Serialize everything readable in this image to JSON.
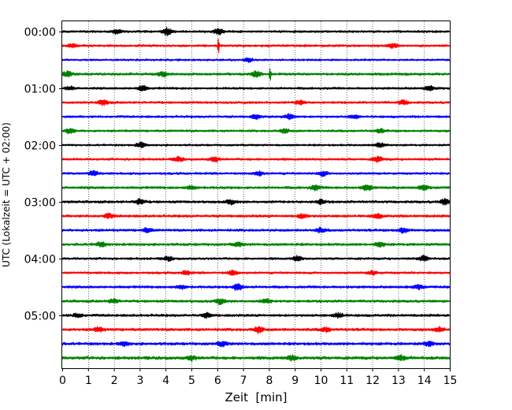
{
  "chart_data": {
    "type": "line",
    "subtype": "helicorder seismogram",
    "xlabel": "Zeit  [min]",
    "ylabel": "UTC (Lokalzeit = UTC + 02:00)",
    "xlim": [
      0,
      15
    ],
    "x_ticks": [
      0,
      1,
      2,
      3,
      4,
      5,
      6,
      7,
      8,
      9,
      10,
      11,
      12,
      13,
      14,
      15
    ],
    "x_tick_labels": [
      "0",
      "1",
      "2",
      "3",
      "4",
      "5",
      "6",
      "7",
      "8",
      "9",
      "10",
      "11",
      "12",
      "13",
      "14",
      "15"
    ],
    "y_tick_labels": [
      "00:00",
      "01:00",
      "02:00",
      "03:00",
      "04:00",
      "05:00"
    ],
    "y_tick_rows": [
      0,
      4,
      8,
      12,
      16,
      20
    ],
    "minutes_per_trace": 15,
    "trace_count": 24,
    "grid": "vertical dotted lines at each minute",
    "trace_colors": [
      "#000000",
      "#ff0000",
      "#0000ff",
      "#008000"
    ],
    "traces": [
      {
        "row": 0,
        "start": "00:00",
        "color": "#000000",
        "amplitude": 0.9,
        "events": [
          {
            "minute": 4.05,
            "amplitude": 3.5
          },
          {
            "minute": 6.05,
            "amplitude": 2.5
          },
          {
            "minute": 2.1,
            "amplitude": 1.8
          }
        ]
      },
      {
        "row": 1,
        "start": "00:15",
        "color": "#ff0000",
        "amplitude": 0.9,
        "events": [
          {
            "minute": 6.05,
            "amplitude": 7.5
          },
          {
            "minute": 12.8,
            "amplitude": 2.0
          },
          {
            "minute": 0.4,
            "amplitude": 1.8
          }
        ]
      },
      {
        "row": 2,
        "start": "00:30",
        "color": "#0000ff",
        "amplitude": 0.8,
        "events": [
          {
            "minute": 7.2,
            "amplitude": 1.8
          }
        ]
      },
      {
        "row": 3,
        "start": "00:45",
        "color": "#008000",
        "amplitude": 1.0,
        "events": [
          {
            "minute": 8.05,
            "amplitude": 9.0
          },
          {
            "minute": 0.2,
            "amplitude": 2.5
          },
          {
            "minute": 3.9,
            "amplitude": 2.0
          },
          {
            "minute": 7.5,
            "amplitude": 2.5
          }
        ]
      },
      {
        "row": 4,
        "start": "01:00",
        "color": "#000000",
        "amplitude": 0.9,
        "events": [
          {
            "minute": 3.1,
            "amplitude": 2.5
          },
          {
            "minute": 14.2,
            "amplitude": 2.0
          },
          {
            "minute": 0.3,
            "amplitude": 1.5
          }
        ]
      },
      {
        "row": 5,
        "start": "01:15",
        "color": "#ff0000",
        "amplitude": 0.9,
        "events": [
          {
            "minute": 1.6,
            "amplitude": 2.5
          },
          {
            "minute": 9.2,
            "amplitude": 2.0
          },
          {
            "minute": 13.2,
            "amplitude": 2.0
          }
        ]
      },
      {
        "row": 6,
        "start": "01:30",
        "color": "#0000ff",
        "amplitude": 0.9,
        "events": [
          {
            "minute": 8.8,
            "amplitude": 2.5
          },
          {
            "minute": 7.5,
            "amplitude": 2.0
          },
          {
            "minute": 11.3,
            "amplitude": 1.6
          }
        ]
      },
      {
        "row": 7,
        "start": "01:45",
        "color": "#008000",
        "amplitude": 0.9,
        "events": [
          {
            "minute": 8.6,
            "amplitude": 2.0
          },
          {
            "minute": 0.3,
            "amplitude": 2.0
          },
          {
            "minute": 12.3,
            "amplitude": 1.6
          }
        ]
      },
      {
        "row": 8,
        "start": "02:00",
        "color": "#000000",
        "amplitude": 0.8,
        "events": [
          {
            "minute": 3.05,
            "amplitude": 2.5
          },
          {
            "minute": 12.3,
            "amplitude": 2.5
          }
        ]
      },
      {
        "row": 9,
        "start": "02:15",
        "color": "#ff0000",
        "amplitude": 0.9,
        "events": [
          {
            "minute": 12.2,
            "amplitude": 2.8
          },
          {
            "minute": 5.9,
            "amplitude": 2.5
          },
          {
            "minute": 4.5,
            "amplitude": 2.0
          }
        ]
      },
      {
        "row": 10,
        "start": "02:30",
        "color": "#0000ff",
        "amplitude": 0.9,
        "events": [
          {
            "minute": 1.2,
            "amplitude": 2.5
          },
          {
            "minute": 10.1,
            "amplitude": 2.2
          },
          {
            "minute": 7.6,
            "amplitude": 2.0
          }
        ]
      },
      {
        "row": 11,
        "start": "02:45",
        "color": "#008000",
        "amplitude": 1.0,
        "events": [
          {
            "minute": 11.8,
            "amplitude": 2.8
          },
          {
            "minute": 9.8,
            "amplitude": 2.3
          },
          {
            "minute": 14.0,
            "amplitude": 2.0
          },
          {
            "minute": 5.0,
            "amplitude": 2.0
          }
        ]
      },
      {
        "row": 12,
        "start": "03:00",
        "color": "#000000",
        "amplitude": 1.0,
        "events": [
          {
            "minute": 3.0,
            "amplitude": 2.5
          },
          {
            "minute": 14.8,
            "amplitude": 2.5
          },
          {
            "minute": 6.5,
            "amplitude": 2.0
          },
          {
            "minute": 10.0,
            "amplitude": 2.0
          }
        ]
      },
      {
        "row": 13,
        "start": "03:15",
        "color": "#ff0000",
        "amplitude": 1.0,
        "events": [
          {
            "minute": 1.8,
            "amplitude": 2.0
          },
          {
            "minute": 9.3,
            "amplitude": 2.2
          },
          {
            "minute": 12.2,
            "amplitude": 2.0
          }
        ]
      },
      {
        "row": 14,
        "start": "03:30",
        "color": "#0000ff",
        "amplitude": 1.0,
        "events": [
          {
            "minute": 13.2,
            "amplitude": 2.5
          },
          {
            "minute": 10.0,
            "amplitude": 2.0
          },
          {
            "minute": 3.3,
            "amplitude": 2.0
          }
        ]
      },
      {
        "row": 15,
        "start": "03:45",
        "color": "#008000",
        "amplitude": 1.0,
        "events": [
          {
            "minute": 1.5,
            "amplitude": 2.0
          },
          {
            "minute": 12.3,
            "amplitude": 2.0
          },
          {
            "minute": 6.8,
            "amplitude": 1.8
          }
        ]
      },
      {
        "row": 16,
        "start": "04:00",
        "color": "#000000",
        "amplitude": 0.9,
        "events": [
          {
            "minute": 9.1,
            "amplitude": 2.2
          },
          {
            "minute": 14.0,
            "amplitude": 2.5
          },
          {
            "minute": 4.1,
            "amplitude": 1.8
          }
        ]
      },
      {
        "row": 17,
        "start": "04:15",
        "color": "#ff0000",
        "amplitude": 0.9,
        "events": [
          {
            "minute": 6.6,
            "amplitude": 2.3
          },
          {
            "minute": 4.8,
            "amplitude": 1.8
          },
          {
            "minute": 12.0,
            "amplitude": 1.8
          }
        ]
      },
      {
        "row": 18,
        "start": "04:30",
        "color": "#0000ff",
        "amplitude": 1.0,
        "events": [
          {
            "minute": 6.8,
            "amplitude": 3.5
          },
          {
            "minute": 4.6,
            "amplitude": 2.0
          },
          {
            "minute": 13.8,
            "amplitude": 1.8
          }
        ]
      },
      {
        "row": 19,
        "start": "04:45",
        "color": "#008000",
        "amplitude": 1.0,
        "events": [
          {
            "minute": 6.1,
            "amplitude": 2.5
          },
          {
            "minute": 2.0,
            "amplitude": 2.0
          },
          {
            "minute": 7.9,
            "amplitude": 2.0
          }
        ]
      },
      {
        "row": 20,
        "start": "05:00",
        "color": "#000000",
        "amplitude": 1.0,
        "events": [
          {
            "minute": 5.6,
            "amplitude": 2.0
          },
          {
            "minute": 10.7,
            "amplitude": 2.2
          },
          {
            "minute": 0.6,
            "amplitude": 1.8
          }
        ]
      },
      {
        "row": 21,
        "start": "05:15",
        "color": "#ff0000",
        "amplitude": 1.1,
        "events": [
          {
            "minute": 7.6,
            "amplitude": 2.8
          },
          {
            "minute": 1.4,
            "amplitude": 2.0
          },
          {
            "minute": 14.6,
            "amplitude": 2.0
          },
          {
            "minute": 10.2,
            "amplitude": 2.0
          }
        ]
      },
      {
        "row": 22,
        "start": "05:30",
        "color": "#0000ff",
        "amplitude": 1.1,
        "events": [
          {
            "minute": 6.2,
            "amplitude": 2.2
          },
          {
            "minute": 14.2,
            "amplitude": 2.0
          },
          {
            "minute": 2.4,
            "amplitude": 1.8
          }
        ]
      },
      {
        "row": 23,
        "start": "05:45",
        "color": "#008000",
        "amplitude": 1.2,
        "events": [
          {
            "minute": 5.0,
            "amplitude": 2.2
          },
          {
            "minute": 8.9,
            "amplitude": 2.2
          },
          {
            "minute": 13.1,
            "amplitude": 2.0
          }
        ]
      }
    ]
  }
}
